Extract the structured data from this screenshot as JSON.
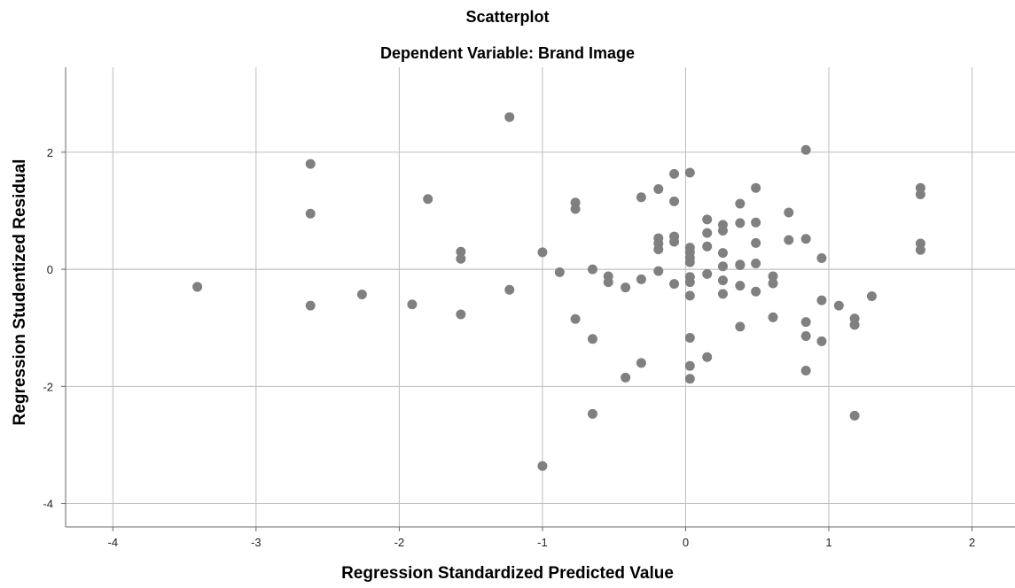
{
  "chart_data": {
    "type": "scatter",
    "title": "Scatterplot",
    "subtitle": "Dependent Variable: Brand Image",
    "xlabel": "Regression Standardized Predicted Value",
    "ylabel": "Regression Studentized Residual",
    "xlim": [
      -4.33,
      2.3
    ],
    "ylim": [
      -4.4,
      3.45
    ],
    "xticks": [
      -4,
      -3,
      -2,
      -1,
      0,
      1,
      2
    ],
    "yticks": [
      -4,
      -2,
      0,
      2
    ],
    "xtick_labels": [
      "-4",
      "-3",
      "-2",
      "-1",
      "0",
      "1",
      "2"
    ],
    "ytick_labels": [
      "-4",
      "-2",
      "0",
      "2"
    ],
    "grid": true,
    "marker_color": "#808080",
    "grid_color": "#bdbdbd",
    "points": [
      {
        "x": -3.41,
        "y": -0.3
      },
      {
        "x": -2.62,
        "y": 1.8
      },
      {
        "x": -2.62,
        "y": 0.95
      },
      {
        "x": -2.62,
        "y": -0.62
      },
      {
        "x": -2.26,
        "y": -0.43
      },
      {
        "x": -1.91,
        "y": -0.6
      },
      {
        "x": -1.8,
        "y": 1.2
      },
      {
        "x": -1.57,
        "y": 0.3
      },
      {
        "x": -1.57,
        "y": 0.18
      },
      {
        "x": -1.57,
        "y": -0.77
      },
      {
        "x": -1.23,
        "y": 2.6
      },
      {
        "x": -1.23,
        "y": -0.35
      },
      {
        "x": -1.0,
        "y": 0.29
      },
      {
        "x": -1.0,
        "y": -3.36
      },
      {
        "x": -0.88,
        "y": -0.05
      },
      {
        "x": -0.77,
        "y": 1.14
      },
      {
        "x": -0.77,
        "y": 1.03
      },
      {
        "x": -0.77,
        "y": -0.85
      },
      {
        "x": -0.65,
        "y": 0.0
      },
      {
        "x": -0.65,
        "y": -1.19
      },
      {
        "x": -0.65,
        "y": -2.47
      },
      {
        "x": -0.54,
        "y": -0.12
      },
      {
        "x": -0.54,
        "y": -0.22
      },
      {
        "x": -0.42,
        "y": -0.31
      },
      {
        "x": -0.42,
        "y": -1.85
      },
      {
        "x": -0.31,
        "y": 1.23
      },
      {
        "x": -0.31,
        "y": -0.17
      },
      {
        "x": -0.31,
        "y": -1.6
      },
      {
        "x": -0.19,
        "y": 1.37
      },
      {
        "x": -0.19,
        "y": 0.53
      },
      {
        "x": -0.19,
        "y": 0.44
      },
      {
        "x": -0.19,
        "y": 0.34
      },
      {
        "x": -0.19,
        "y": -0.03
      },
      {
        "x": -0.08,
        "y": 1.63
      },
      {
        "x": -0.08,
        "y": 1.16
      },
      {
        "x": -0.08,
        "y": 0.56
      },
      {
        "x": -0.08,
        "y": 0.47
      },
      {
        "x": -0.08,
        "y": -0.25
      },
      {
        "x": 0.03,
        "y": 1.65
      },
      {
        "x": 0.03,
        "y": 0.37
      },
      {
        "x": 0.03,
        "y": 0.29
      },
      {
        "x": 0.03,
        "y": 0.2
      },
      {
        "x": 0.03,
        "y": 0.12
      },
      {
        "x": 0.03,
        "y": -0.13
      },
      {
        "x": 0.03,
        "y": -0.22
      },
      {
        "x": 0.03,
        "y": -0.45
      },
      {
        "x": 0.03,
        "y": -1.17
      },
      {
        "x": 0.03,
        "y": -1.65
      },
      {
        "x": 0.03,
        "y": -1.87
      },
      {
        "x": 0.15,
        "y": 0.85
      },
      {
        "x": 0.15,
        "y": 0.62
      },
      {
        "x": 0.15,
        "y": 0.39
      },
      {
        "x": 0.15,
        "y": -0.08
      },
      {
        "x": 0.15,
        "y": -1.5
      },
      {
        "x": 0.26,
        "y": 0.76
      },
      {
        "x": 0.26,
        "y": 0.66
      },
      {
        "x": 0.26,
        "y": 0.28
      },
      {
        "x": 0.26,
        "y": 0.05
      },
      {
        "x": 0.26,
        "y": -0.19
      },
      {
        "x": 0.26,
        "y": -0.42
      },
      {
        "x": 0.38,
        "y": 1.12
      },
      {
        "x": 0.38,
        "y": 0.79
      },
      {
        "x": 0.38,
        "y": 0.08
      },
      {
        "x": 0.38,
        "y": 0.07
      },
      {
        "x": 0.38,
        "y": -0.28
      },
      {
        "x": 0.38,
        "y": -0.98
      },
      {
        "x": 0.49,
        "y": 1.39
      },
      {
        "x": 0.49,
        "y": 0.8
      },
      {
        "x": 0.49,
        "y": 0.45
      },
      {
        "x": 0.49,
        "y": 0.1
      },
      {
        "x": 0.49,
        "y": -0.38
      },
      {
        "x": 0.61,
        "y": -0.12
      },
      {
        "x": 0.61,
        "y": -0.24
      },
      {
        "x": 0.61,
        "y": -0.82
      },
      {
        "x": 0.72,
        "y": 0.97
      },
      {
        "x": 0.72,
        "y": 0.5
      },
      {
        "x": 0.84,
        "y": 2.04
      },
      {
        "x": 0.84,
        "y": 0.52
      },
      {
        "x": 0.84,
        "y": -0.9
      },
      {
        "x": 0.84,
        "y": -1.14
      },
      {
        "x": 0.84,
        "y": -1.73
      },
      {
        "x": 0.95,
        "y": 0.19
      },
      {
        "x": 0.95,
        "y": -0.53
      },
      {
        "x": 0.95,
        "y": -1.23
      },
      {
        "x": 1.07,
        "y": -0.62
      },
      {
        "x": 1.18,
        "y": -0.84
      },
      {
        "x": 1.18,
        "y": -0.95
      },
      {
        "x": 1.18,
        "y": -2.5
      },
      {
        "x": 1.3,
        "y": -0.46
      },
      {
        "x": 1.64,
        "y": 1.39
      },
      {
        "x": 1.64,
        "y": 1.28
      },
      {
        "x": 1.64,
        "y": 0.44
      },
      {
        "x": 1.64,
        "y": 0.33
      }
    ]
  }
}
